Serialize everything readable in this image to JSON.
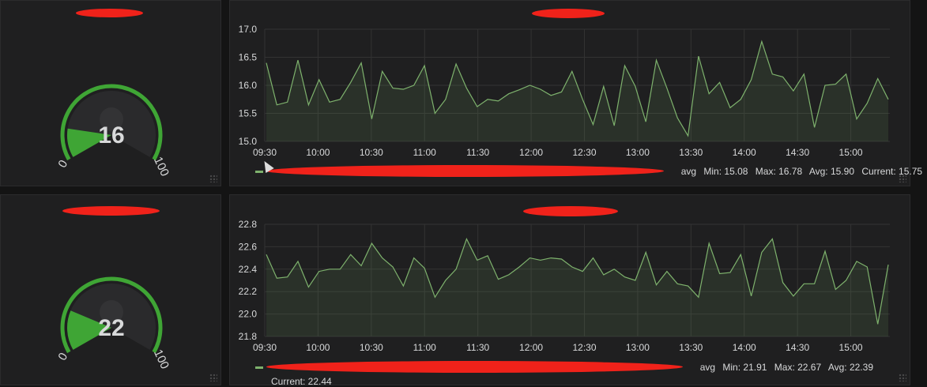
{
  "colors": {
    "series": "#7eb26d",
    "gauge_arc": "#3fa535",
    "gauge_fill": "#3fa535",
    "redaction": "#f0221a"
  },
  "gauges": [
    {
      "value": "16",
      "min_label": "0",
      "max_label": "100",
      "fraction": 0.16
    },
    {
      "value": "22",
      "min_label": "0",
      "max_label": "100",
      "fraction": 0.22
    }
  ],
  "charts": [
    {
      "legend": {
        "suffix": "avg",
        "min": "Min: 15.08",
        "max": "Max: 16.78",
        "avg": "Avg: 15.90",
        "current": "Current: 15.75"
      }
    },
    {
      "legend": {
        "suffix": "avg",
        "min": "Min: 21.91",
        "max": "Max: 22.67",
        "avg": "Avg: 22.39",
        "current": "Current: 22.44"
      }
    }
  ],
  "chart_data": [
    {
      "type": "area",
      "ylim": [
        15.0,
        17.0
      ],
      "y_ticks": [
        "15.0",
        "15.5",
        "16.0",
        "16.5",
        "17.0"
      ],
      "x_ticks": [
        "09:30",
        "10:00",
        "10:30",
        "11:00",
        "11:30",
        "12:00",
        "12:30",
        "13:00",
        "13:30",
        "14:00",
        "14:30",
        "15:00"
      ],
      "x_range_minutes": [
        570,
        922
      ],
      "series": [
        {
          "values": [
            16.4,
            15.65,
            15.7,
            16.45,
            15.65,
            16.1,
            15.7,
            15.75,
            16.05,
            16.4,
            15.4,
            16.25,
            15.95,
            15.93,
            16.0,
            16.35,
            15.5,
            15.75,
            16.38,
            15.95,
            15.62,
            15.75,
            15.72,
            15.85,
            15.92,
            16.0,
            15.93,
            15.82,
            15.88,
            16.25,
            15.75,
            15.3,
            15.98,
            15.28,
            16.35,
            15.98,
            15.35,
            16.45,
            15.95,
            15.42,
            15.1,
            16.52,
            15.85,
            16.05,
            15.6,
            15.75,
            16.1,
            16.78,
            16.2,
            16.15,
            15.9,
            16.2,
            15.25,
            16.0,
            16.02,
            16.2,
            15.4,
            15.68,
            16.12,
            15.75
          ]
        }
      ]
    },
    {
      "type": "area",
      "ylim": [
        21.8,
        22.8
      ],
      "y_ticks": [
        "21.8",
        "22.0",
        "22.2",
        "22.4",
        "22.6",
        "22.8"
      ],
      "x_ticks": [
        "09:30",
        "10:00",
        "10:30",
        "11:00",
        "11:30",
        "12:00",
        "12:30",
        "13:00",
        "13:30",
        "14:00",
        "14:30",
        "15:00"
      ],
      "x_range_minutes": [
        570,
        922
      ],
      "series": [
        {
          "values": [
            22.53,
            22.32,
            22.33,
            22.47,
            22.24,
            22.38,
            22.4,
            22.4,
            22.53,
            22.43,
            22.63,
            22.5,
            22.42,
            22.25,
            22.5,
            22.41,
            22.15,
            22.3,
            22.4,
            22.67,
            22.48,
            22.52,
            22.31,
            22.35,
            22.42,
            22.5,
            22.48,
            22.5,
            22.49,
            22.42,
            22.38,
            22.5,
            22.35,
            22.4,
            22.33,
            22.3,
            22.55,
            22.26,
            22.38,
            22.27,
            22.25,
            22.15,
            22.63,
            22.36,
            22.37,
            22.53,
            22.16,
            22.55,
            22.67,
            22.28,
            22.16,
            22.27,
            22.27,
            22.56,
            22.22,
            22.3,
            22.47,
            22.42,
            21.91,
            22.44
          ]
        }
      ]
    }
  ]
}
